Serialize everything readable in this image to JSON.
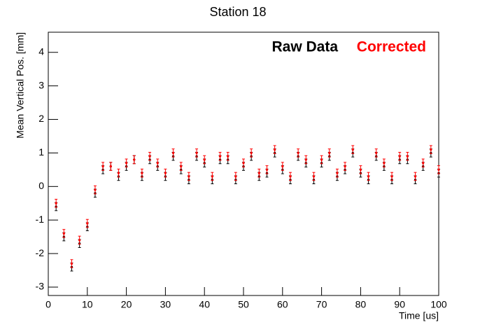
{
  "chart_data": {
    "type": "scatter",
    "title": "Station 18",
    "xlabel": "Time [us]",
    "ylabel": "Mean Vertical Pos. [mm]",
    "xlim": [
      0,
      100
    ],
    "ylim": [
      -3.25,
      4.6
    ],
    "xticks": [
      0,
      10,
      20,
      30,
      40,
      50,
      60,
      70,
      80,
      90,
      100
    ],
    "yticks": [
      -3,
      -2,
      -1,
      0,
      1,
      2,
      3,
      4
    ],
    "x": [
      2,
      4,
      6,
      8,
      10,
      12,
      14,
      16,
      18,
      20,
      22,
      24,
      26,
      28,
      30,
      32,
      34,
      36,
      38,
      40,
      42,
      44,
      46,
      48,
      50,
      52,
      54,
      56,
      58,
      60,
      62,
      64,
      66,
      68,
      70,
      72,
      74,
      76,
      78,
      80,
      82,
      84,
      86,
      88,
      90,
      92,
      94,
      96,
      98,
      100
    ],
    "series": [
      {
        "name": "Raw Data",
        "color": "#000000",
        "error": 0.12,
        "values": [
          -0.6,
          -1.5,
          -2.4,
          -1.7,
          -1.2,
          -0.2,
          0.5,
          0.6,
          0.3,
          0.6,
          0.8,
          0.3,
          0.8,
          0.6,
          0.3,
          0.9,
          0.5,
          0.2,
          0.9,
          0.7,
          0.2,
          0.8,
          0.8,
          0.2,
          0.6,
          0.9,
          0.3,
          0.4,
          1.0,
          0.5,
          0.2,
          0.9,
          0.7,
          0.2,
          0.7,
          0.9,
          0.3,
          0.5,
          1.0,
          0.4,
          0.2,
          0.9,
          0.6,
          0.2,
          0.8,
          0.8,
          0.2,
          0.6,
          1.0,
          0.4
        ]
      },
      {
        "name": "Corrected",
        "color": "#ff0000",
        "error": 0.12,
        "values": [
          -0.5,
          -1.4,
          -2.3,
          -1.6,
          -1.1,
          -0.1,
          0.6,
          0.6,
          0.4,
          0.7,
          0.8,
          0.4,
          0.9,
          0.7,
          0.4,
          1.0,
          0.6,
          0.3,
          1.0,
          0.8,
          0.3,
          0.9,
          0.9,
          0.3,
          0.7,
          1.0,
          0.4,
          0.5,
          1.1,
          0.6,
          0.3,
          1.0,
          0.8,
          0.3,
          0.8,
          1.0,
          0.4,
          0.6,
          1.1,
          0.5,
          0.3,
          1.0,
          0.7,
          0.3,
          0.9,
          0.9,
          0.3,
          0.7,
          1.1,
          0.5
        ]
      }
    ]
  }
}
